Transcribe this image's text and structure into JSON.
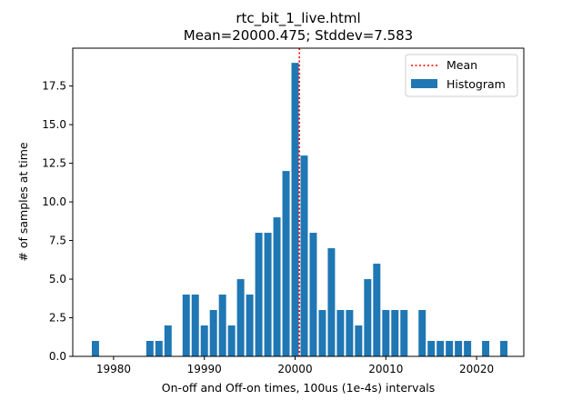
{
  "chart_data": {
    "type": "bar",
    "title": "rtc_bit_1_live.html",
    "subtitle": "Mean=20000.475; Stddev=7.583",
    "xlabel": "On-off and Off-on times, 100us (1e-4s) intervals",
    "ylabel": "# of samples at time",
    "xlim": [
      19975.5,
      20025.2
    ],
    "ylim": [
      0,
      19.95
    ],
    "xticks": [
      19980,
      19990,
      20000,
      20010,
      20020
    ],
    "yticks": [
      0.0,
      2.5,
      5.0,
      7.5,
      10.0,
      12.5,
      15.0,
      17.5
    ],
    "xtick_labels": [
      "19980",
      "19990",
      "20000",
      "20010",
      "20020"
    ],
    "ytick_labels": [
      "0.0",
      "2.5",
      "5.0",
      "7.5",
      "10.0",
      "12.5",
      "15.0",
      "17.5"
    ],
    "mean": 20000.475,
    "bar_width": 0.8,
    "bar_color": "#1f77b4",
    "mean_line_color": "#ff0000",
    "grid": false,
    "legend_position": "top-right",
    "series": [
      {
        "name": "Histogram",
        "x": [
          19978,
          19984,
          19985,
          19986,
          19988,
          19989,
          19990,
          19991,
          19992,
          19993,
          19994,
          19995,
          19996,
          19997,
          19998,
          19999,
          20000,
          20001,
          20002,
          20003,
          20004,
          20005,
          20006,
          20007,
          20008,
          20009,
          20010,
          20011,
          20012,
          20014,
          20015,
          20016,
          20017,
          20018,
          20019,
          20021,
          20023
        ],
        "values": [
          1,
          1,
          1,
          2,
          4,
          4,
          2,
          3,
          4,
          2,
          5,
          4,
          8,
          8,
          9,
          12,
          19,
          13,
          8,
          3,
          7,
          3,
          3,
          2,
          5,
          6,
          3,
          3,
          3,
          3,
          1,
          1,
          1,
          1,
          1,
          1,
          1
        ]
      }
    ],
    "legend": [
      {
        "label": "Mean",
        "style": "dotted-line"
      },
      {
        "label": "Histogram",
        "style": "patch"
      }
    ]
  }
}
